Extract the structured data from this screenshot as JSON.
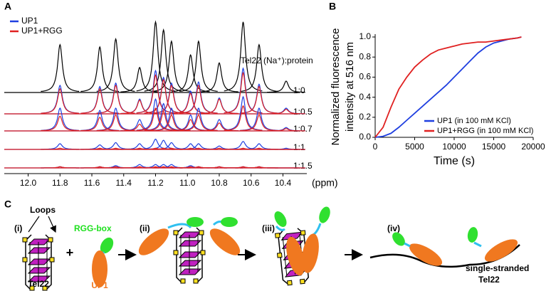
{
  "panel_labels": [
    "A",
    "B",
    "C"
  ],
  "chart_data": [
    {
      "type": "spectrum",
      "annotation": "Tel22 (Na⁺):protein",
      "x_label": "(ppm)",
      "xlim": [
        12.15,
        10.25
      ],
      "xticks": [
        {
          "value": 12,
          "label": "12.0"
        },
        11.8,
        11.6,
        11.4,
        11.2,
        {
          "value": 11,
          "label": "11.0"
        },
        10.8,
        10.6,
        10.4
      ],
      "legend": [
        {
          "name": "UP1",
          "color": "#1f3fe0"
        },
        {
          "name": "UP1+RGG",
          "color": "#e02020"
        }
      ],
      "peaks": [
        11.8,
        11.55,
        11.45,
        11.3,
        11.2,
        11.15,
        11.1,
        10.98,
        10.93,
        10.8,
        10.65,
        10.55,
        10.38
      ],
      "traces": [
        {
          "label": "1:0",
          "lines": [
            {
              "color": "#000000",
              "values": [
                0.42,
                0.4,
                0.47,
                0.22,
                0.62,
                0.55,
                0.45,
                0.33,
                0.45,
                0.26,
                0.62,
                0.42,
                0.1
              ]
            }
          ]
        },
        {
          "label": "1:0.5",
          "lines": [
            {
              "color": "#1f3fe0",
              "values": [
                0.25,
                0.24,
                0.27,
                0.13,
                0.38,
                0.32,
                0.27,
                0.2,
                0.28,
                0.14,
                0.4,
                0.26,
                0.05
              ]
            },
            {
              "color": "#e02020",
              "values": [
                0.22,
                0.22,
                0.25,
                0.12,
                0.34,
                0.3,
                0.25,
                0.18,
                0.25,
                0.13,
                0.36,
                0.24,
                0.04
              ]
            }
          ]
        },
        {
          "label": "1:0.7",
          "lines": [
            {
              "color": "#1f3fe0",
              "values": [
                0.2,
                0.18,
                0.2,
                0.1,
                0.28,
                0.24,
                0.2,
                0.14,
                0.2,
                0.1,
                0.3,
                0.2,
                0.03
              ]
            },
            {
              "color": "#e02020",
              "values": [
                0.13,
                0.12,
                0.14,
                0.06,
                0.2,
                0.17,
                0.14,
                0.1,
                0.14,
                0.07,
                0.22,
                0.14,
                0.02
              ]
            }
          ]
        },
        {
          "label": "1:1",
          "lines": [
            {
              "color": "#1f3fe0",
              "values": [
                0.05,
                0.04,
                0.06,
                0.05,
                0.09,
                0.08,
                0.06,
                0.05,
                0.05,
                0.03,
                0.07,
                0.05,
                0.01
              ]
            },
            {
              "color": "#e02020",
              "values": [
                0.01,
                0.01,
                0.01,
                0.01,
                0.01,
                0.01,
                0.01,
                0.01,
                0.01,
                0.01,
                0.01,
                0.01,
                0.0
              ]
            }
          ]
        },
        {
          "label": "1:1.5",
          "lines": [
            {
              "color": "#1f3fe0",
              "values": [
                0.01,
                0.01,
                0.02,
                0.03,
                0.03,
                0.03,
                0.03,
                0.02,
                0.01,
                0.01,
                0.01,
                0.01,
                0.0
              ]
            },
            {
              "color": "#e02020",
              "values": [
                0.01,
                0.01,
                0.01,
                0.01,
                0.01,
                0.01,
                0.01,
                0.01,
                0.01,
                0.01,
                0.01,
                0.01,
                0.0
              ]
            }
          ]
        }
      ]
    },
    {
      "type": "line",
      "y_label": [
        "Normalized fluorescence",
        "intensity at 516 nm"
      ],
      "x_label": "Time (s)",
      "xlim": [
        0,
        20000
      ],
      "xticks": [
        0,
        5000,
        10000,
        15000,
        20000
      ],
      "ylim": [
        0,
        1
      ],
      "yticks": [
        {
          "value": 0,
          "label": "0.0"
        },
        0.2,
        0.4,
        0.6,
        0.8,
        {
          "value": 1,
          "label": "1.0"
        }
      ],
      "legend_position": "lower right",
      "x": [
        0,
        1000,
        2000,
        3000,
        4000,
        5000,
        6000,
        7000,
        8000,
        9000,
        10000,
        11000,
        12000,
        13000,
        14000,
        15000,
        16000,
        17000,
        18000,
        18500
      ],
      "series": [
        {
          "name": "UP1 (in 100 mM KCl)",
          "color": "#1f3fe0",
          "values": [
            0,
            0.01,
            0.04,
            0.1,
            0.17,
            0.24,
            0.31,
            0.38,
            0.45,
            0.52,
            0.6,
            0.68,
            0.76,
            0.84,
            0.9,
            0.94,
            0.96,
            0.98,
            0.99,
            1.0
          ]
        },
        {
          "name": "UP1+RGG (in 100 mM KCl)",
          "color": "#e02020",
          "values": [
            0,
            0.1,
            0.3,
            0.48,
            0.6,
            0.7,
            0.77,
            0.83,
            0.87,
            0.89,
            0.91,
            0.93,
            0.94,
            0.95,
            0.95,
            0.96,
            0.97,
            0.98,
            0.99,
            1.0
          ]
        }
      ]
    }
  ],
  "diagram": {
    "step_labels": [
      "(i)",
      "(ii)",
      "(iii)",
      "(iv)"
    ],
    "loops": "Loops",
    "rgg_box": "RGG-box",
    "plus": "+",
    "tel22": "Tel22",
    "up1": "UP1",
    "single_stranded": [
      "single-stranded",
      "Tel22"
    ]
  }
}
